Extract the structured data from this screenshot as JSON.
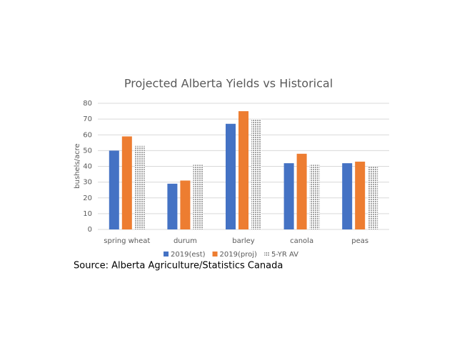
{
  "chart_data": {
    "type": "bar",
    "title": "Projected Alberta Yields vs Historical",
    "y_label": "bushels/acre",
    "source": "Source: Alberta Agriculture/Statistics Canada",
    "categories": [
      "spring wheat",
      "durum",
      "barley",
      "canola",
      "peas"
    ],
    "series": [
      {
        "name": "2019(est)",
        "color": "#4472c4",
        "values": [
          50,
          29,
          67,
          42,
          42
        ]
      },
      {
        "name": "2019(proj)",
        "color": "#ed7d31",
        "values": [
          59,
          31,
          75,
          48,
          43
        ]
      },
      {
        "name": "5-YR AV",
        "color": "#a5a5a5",
        "values": [
          53,
          41,
          70,
          41,
          40
        ]
      }
    ],
    "ylim": [
      0,
      80
    ],
    "yticks": [
      0,
      10,
      20,
      30,
      40,
      50,
      60,
      70,
      80
    ],
    "grid": true,
    "legend": "bottom"
  }
}
